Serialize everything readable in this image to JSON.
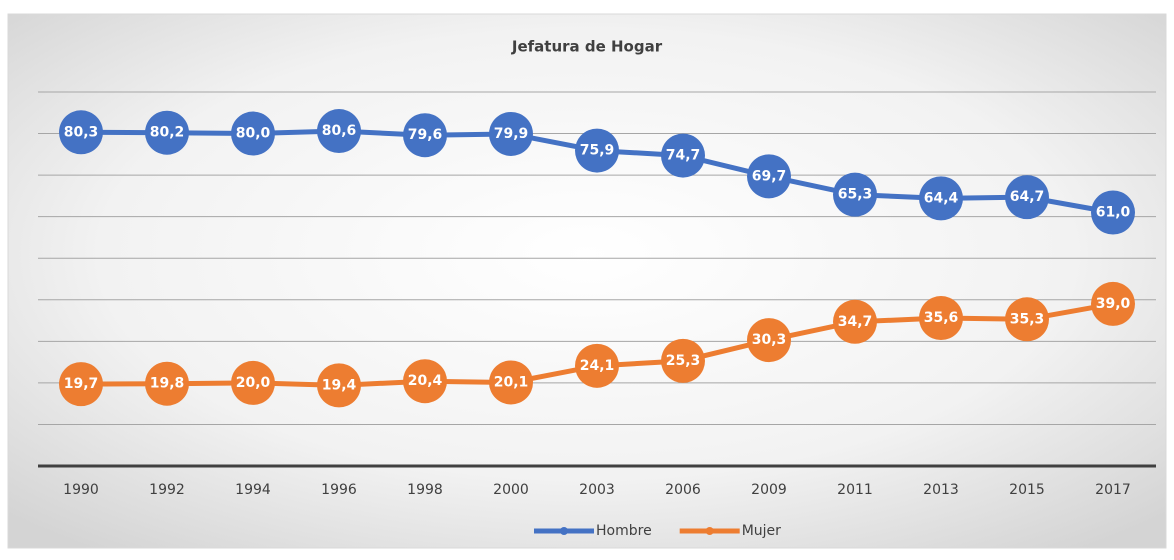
{
  "chart_data": {
    "type": "line",
    "title": "Jefatura de Hogar",
    "categories": [
      "1990",
      "1992",
      "1994",
      "1996",
      "1998",
      "2000",
      "2003",
      "2006",
      "2009",
      "2011",
      "2013",
      "2015",
      "2017"
    ],
    "series": [
      {
        "name": "Hombre",
        "color": "#4472c4",
        "values": [
          80.3,
          80.2,
          80.0,
          80.6,
          79.6,
          79.9,
          75.9,
          74.7,
          69.7,
          65.3,
          64.4,
          64.7,
          61.0
        ],
        "value_labels": [
          "80,3",
          "80,2",
          "80,0",
          "80,6",
          "79,6",
          "79,9",
          "75,9",
          "74,7",
          "69,7",
          "65,3",
          "64,4",
          "64,7",
          "61,0"
        ]
      },
      {
        "name": "Mujer",
        "color": "#ed7d31",
        "values": [
          19.7,
          19.8,
          20.0,
          19.4,
          20.4,
          20.1,
          24.1,
          25.3,
          30.3,
          34.7,
          35.6,
          35.3,
          39.0
        ],
        "value_labels": [
          "19,7",
          "19,8",
          "20,0",
          "19,4",
          "20,4",
          "20,1",
          "24,1",
          "25,3",
          "30,3",
          "34,7",
          "35,6",
          "35,3",
          "39,0"
        ]
      }
    ],
    "ylim": [
      0,
      90
    ],
    "yticks": [
      0,
      10,
      20,
      30,
      40,
      50,
      60,
      70,
      80,
      90
    ],
    "grid": true,
    "legend": "bottom"
  }
}
